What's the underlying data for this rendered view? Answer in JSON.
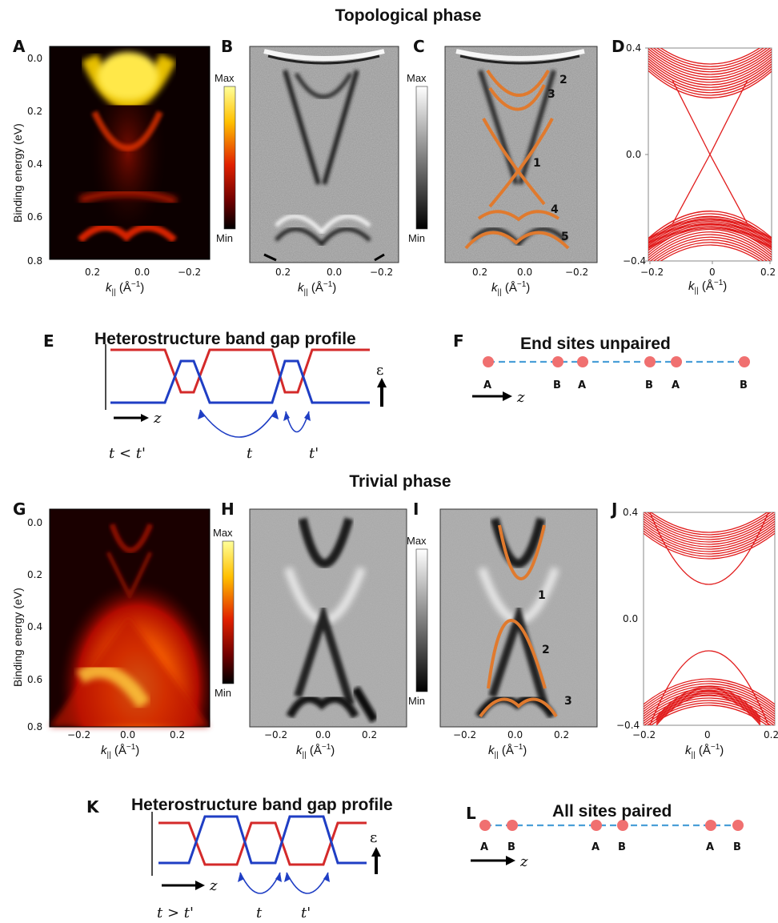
{
  "section_titles": {
    "topological": "Topological phase",
    "trivial": "Trivial phase"
  },
  "panels": {
    "A": "A",
    "B": "B",
    "C": "C",
    "D": "D",
    "E": "E",
    "F": "F",
    "G": "G",
    "H": "H",
    "I": "I",
    "J": "J",
    "K": "K",
    "L": "L"
  },
  "axes": {
    "ylabel": "Binding energy (eV)",
    "xlabel_main": "k",
    "xlabel_sub": "||",
    "xlabel_unit": " (Å",
    "xlabel_exp": "−1",
    "xlabel_close": ")",
    "top_y_ticks": [
      "0.0",
      "0.2",
      "0.4",
      "0.6",
      "0.8"
    ],
    "top_x_ticks": [
      "0.2",
      "0.0",
      "−0.2"
    ],
    "bottom_y_ticks": [
      "0.0",
      "0.2",
      "0.4",
      "0.6",
      "0.8"
    ],
    "bottom_x_ticks": [
      "−0.2",
      "0.0",
      "0.2"
    ],
    "theory_y_ticks": [
      "0.4",
      "0.0",
      "−0.4"
    ],
    "theory_x_ticks": [
      "−0.2",
      "0",
      "0.2"
    ]
  },
  "colorbars": {
    "max": "Max",
    "min": "Min"
  },
  "band_labels_top": [
    "2",
    "3",
    "1",
    "4",
    "5"
  ],
  "band_labels_bottom": [
    "1",
    "2",
    "3"
  ],
  "diagram_E": {
    "title": "Heterostructure band gap profile",
    "z": "z",
    "eps": "ε",
    "relation": "t < t'",
    "t": "t",
    "tp": "t'"
  },
  "diagram_F": {
    "title": "End sites unpaired",
    "sites": [
      "A",
      "B",
      "A",
      "B",
      "A",
      "B"
    ],
    "z": "z"
  },
  "diagram_K": {
    "title": "Heterostructure band gap profile",
    "z": "z",
    "eps": "ε",
    "relation": "t > t'",
    "t": "t",
    "tp": "t'"
  },
  "diagram_L": {
    "title": "All sites paired",
    "sites": [
      "A",
      "B",
      "A",
      "B",
      "A",
      "B"
    ],
    "z": "z"
  },
  "colors": {
    "band_red": "#d42a2a",
    "band_blue": "#1f3ec4",
    "fit_orange": "#e07a2e",
    "site_pink": "#f07070",
    "bond_blue": "#4a9fd8"
  }
}
